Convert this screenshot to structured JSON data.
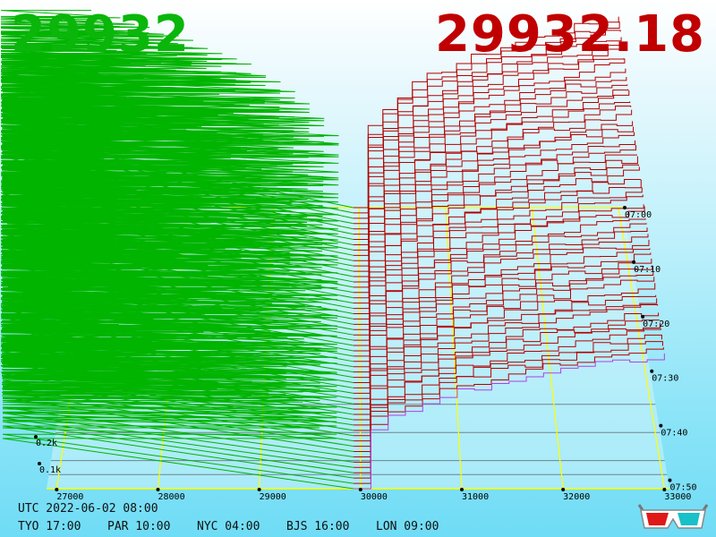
{
  "header": {
    "bid_price": "29932",
    "ask_price": "29932.18"
  },
  "clock": {
    "utc": "UTC 2022-06-02 08:00",
    "zones": [
      "TYO 17:00",
      "PAR 10:00",
      "NYC 04:00",
      "BJS 16:00",
      "LON 09:00"
    ]
  },
  "colors": {
    "bids": "#00b400",
    "asks": "#b40000",
    "latest_ask": "#b040e0",
    "grid": "#ffff00",
    "bid_text": "#0ab60a",
    "ask_text": "#c00000"
  },
  "icons": {
    "corner": "3d-glasses-icon"
  },
  "chart_data": {
    "type": "area",
    "description_free": true,
    "x_axis": {
      "ticks": [
        "27000",
        "28000",
        "29000",
        "30000",
        "31000",
        "32000",
        "33000"
      ],
      "range": [
        26900,
        33050
      ]
    },
    "z_axis": {
      "labels": [
        "0.1k",
        "0.2k"
      ],
      "values": [
        100,
        200
      ]
    },
    "time_axis": {
      "labels": [
        "07:00",
        "07:10",
        "07:20",
        "07:30",
        "07:40",
        "07:50"
      ]
    },
    "series": [
      {
        "name": "bids",
        "mid_price": 29932,
        "x_start": 26900
      },
      {
        "name": "asks",
        "mid_price": 29932.18,
        "x_end": 33000
      }
    ]
  }
}
